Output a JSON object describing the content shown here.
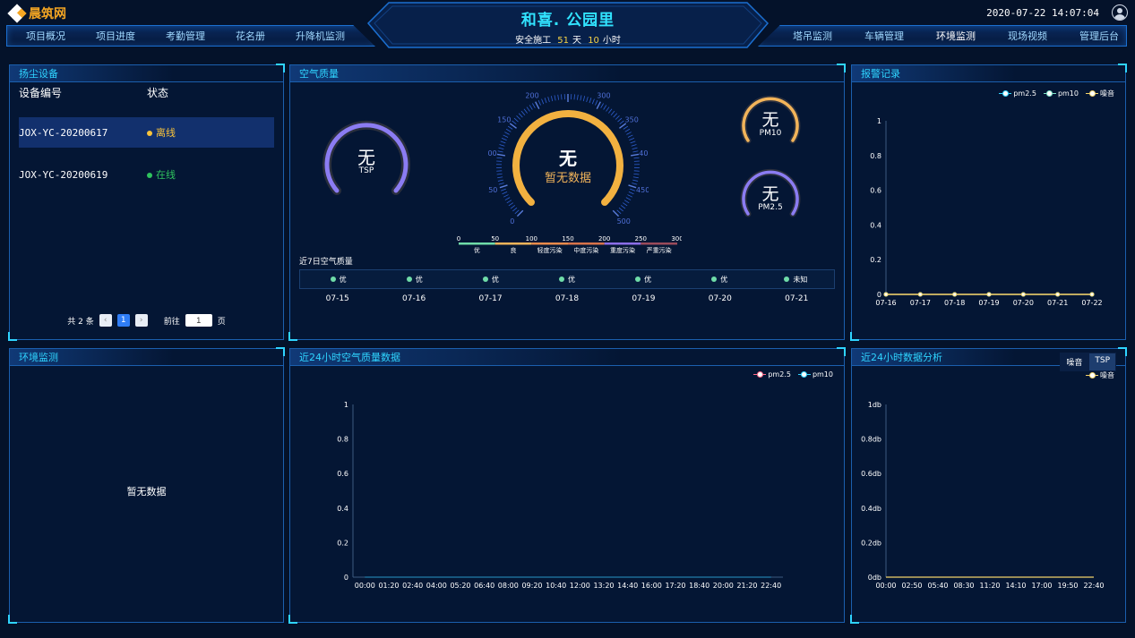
{
  "header": {
    "brand": "晨筑网",
    "site_name": "和喜. 公园里",
    "safety_prefix": "安全施工",
    "safety_days": "51",
    "safety_day_unit": "天",
    "safety_hours": "10",
    "safety_hour_unit": "小时",
    "datetime": "2020-07-22  14:07:04",
    "nav_left": [
      "项目概况",
      "项目进度",
      "考勤管理",
      "花名册",
      "升降机监测"
    ],
    "nav_right": [
      "塔吊监测",
      "车辆管理",
      "环境监测",
      "现场视频",
      "管理后台"
    ],
    "active_nav": "环境监测"
  },
  "dust": {
    "title": "扬尘设备",
    "col_id": "设备编号",
    "col_status": "状态",
    "rows": [
      {
        "id": "JOX-YC-20200617",
        "status": "离线",
        "color": "#f8c33b"
      },
      {
        "id": "JOX-YC-20200619",
        "status": "在线",
        "color": "#2fc35e"
      }
    ],
    "pager": {
      "total": "共 2 条",
      "current": "1",
      "goto": "前往",
      "page_value": "1",
      "page_unit": "页"
    }
  },
  "air": {
    "title": "空气质量",
    "tsp": {
      "value": "无",
      "label": "TSP"
    },
    "main": {
      "value": "无",
      "label": "暂无数据"
    },
    "pm10": {
      "value": "无",
      "label": "PM10"
    },
    "pm25": {
      "value": "无",
      "label": "PM2.5"
    },
    "dial_ticks": [
      "0",
      "50",
      "100",
      "150",
      "200",
      "300",
      "350",
      "400",
      "450",
      "500"
    ],
    "scale": {
      "numbers": [
        "0",
        "50",
        "100",
        "150",
        "200",
        "250",
        "300"
      ],
      "levels": [
        "优",
        "良",
        "轻度污染",
        "中度污染",
        "重度污染",
        "严重污染"
      ],
      "colors": [
        "#6fdca8",
        "#f2b45a",
        "#e98a4b",
        "#d8734a",
        "#8c6ee8",
        "#9a4a5a"
      ]
    },
    "seven_title": "近7日空气质量",
    "seven_days": [
      {
        "status": "优",
        "date": "07-15"
      },
      {
        "status": "优",
        "date": "07-16"
      },
      {
        "status": "优",
        "date": "07-17"
      },
      {
        "status": "优",
        "date": "07-18"
      },
      {
        "status": "优",
        "date": "07-19"
      },
      {
        "status": "优",
        "date": "07-20"
      },
      {
        "status": "未知",
        "date": "07-21"
      }
    ]
  },
  "alarm": {
    "title": "报警记录",
    "legend": [
      "pm2.5",
      "pm10",
      "噪音"
    ],
    "chart_data": {
      "type": "line",
      "categories": [
        "07-16",
        "07-17",
        "07-18",
        "07-19",
        "07-20",
        "07-21",
        "07-22"
      ],
      "series": [
        {
          "name": "pm2.5",
          "values": [
            0,
            0,
            0,
            0,
            0,
            0,
            0
          ],
          "color": "#2fd4ff"
        },
        {
          "name": "pm10",
          "values": [
            0,
            0,
            0,
            0,
            0,
            0,
            0
          ],
          "color": "#7ee2c8"
        },
        {
          "name": "噪音",
          "values": [
            0,
            0,
            0,
            0,
            0,
            0,
            0
          ],
          "color": "#f2d36b"
        }
      ],
      "yticks": [
        "0",
        "0.2",
        "0.4",
        "0.6",
        "0.8",
        "1"
      ],
      "ylim": [
        0,
        1
      ]
    }
  },
  "env": {
    "title": "环境监测",
    "empty": "暂无数据"
  },
  "air24": {
    "title": "近24小时空气质量数据",
    "legend": [
      "pm2.5",
      "pm10"
    ],
    "chart_data": {
      "type": "line",
      "categories": [
        "00:00",
        "01:20",
        "02:40",
        "04:00",
        "05:20",
        "06:40",
        "08:00",
        "09:20",
        "10:40",
        "12:00",
        "13:20",
        "14:40",
        "16:00",
        "17:20",
        "18:40",
        "20:00",
        "21:20",
        "22:40"
      ],
      "series": [
        {
          "name": "pm2.5",
          "values": [
            0,
            0,
            0,
            0,
            0,
            0,
            0,
            0,
            0,
            0,
            0,
            0,
            0,
            0,
            0,
            0,
            0,
            0
          ],
          "color": "#ff6b8a"
        },
        {
          "name": "pm10",
          "values": [
            0,
            0,
            0,
            0,
            0,
            0,
            0,
            0,
            0,
            0,
            0,
            0,
            0,
            0,
            0,
            0,
            0,
            0
          ],
          "color": "#2fd4ff"
        }
      ],
      "yticks": [
        "0",
        "0.2",
        "0.4",
        "0.6",
        "0.8",
        "1"
      ],
      "ylim": [
        0,
        1
      ]
    }
  },
  "analysis": {
    "title": "近24小时数据分析",
    "tabs": [
      "噪音",
      "TSP"
    ],
    "active_tab": "TSP",
    "legend": [
      "噪音"
    ],
    "chart_data": {
      "type": "line",
      "categories": [
        "00:00",
        "02:50",
        "05:40",
        "08:30",
        "11:20",
        "14:10",
        "17:00",
        "19:50",
        "22:40"
      ],
      "series": [
        {
          "name": "噪音",
          "values": [
            0,
            0,
            0,
            0,
            0,
            0,
            0,
            0,
            0
          ],
          "color": "#f2d36b"
        }
      ],
      "yticks": [
        "0db",
        "0.2db",
        "0.4db",
        "0.6db",
        "0.8db",
        "1db"
      ],
      "ylim": [
        0,
        1
      ]
    }
  }
}
